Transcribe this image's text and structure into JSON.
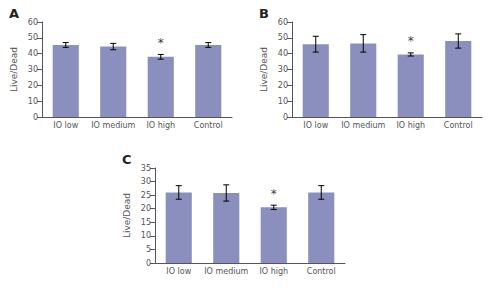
{
  "chart_data": [
    {
      "type": "bar",
      "title": "A",
      "categories": [
        "IO low",
        "IO medium",
        "IO high",
        "Control"
      ],
      "values": [
        45.5,
        44.5,
        38.0,
        45.5
      ],
      "errors": [
        1.5,
        2.0,
        1.5,
        1.5
      ],
      "color": "#8b8fbe",
      "ylim": [
        0,
        60
      ],
      "yticks": [
        0,
        10,
        20,
        30,
        40,
        50,
        60
      ],
      "ylabel": "Live/Dead",
      "grid": false,
      "annotations": [
        {
          "text": "*",
          "x": "IO high",
          "y": 43.0
        }
      ]
    },
    {
      "type": "bar",
      "title": "B",
      "categories": [
        "IO low",
        "IO medium",
        "IO high",
        "Control"
      ],
      "values": [
        46.0,
        46.5,
        39.5,
        48.0
      ],
      "errors": [
        5.0,
        5.5,
        1.0,
        4.5
      ],
      "color": "#8b8fbe",
      "ylim": [
        0,
        60
      ],
      "yticks": [
        0,
        10,
        20,
        30,
        40,
        50,
        60
      ],
      "ylabel": "Live/Dead",
      "grid": false,
      "annotations": [
        {
          "text": "*",
          "x": "IO high",
          "y": 44.0
        }
      ]
    },
    {
      "type": "bar",
      "title": "C",
      "categories": [
        "IO low",
        "IO medium",
        "IO high",
        "Control"
      ],
      "values": [
        26.0,
        25.8,
        20.5,
        26.0
      ],
      "errors": [
        2.5,
        3.0,
        0.8,
        2.5
      ],
      "color": "#8b8fbe",
      "ylim": [
        0,
        35
      ],
      "yticks": [
        0,
        5,
        10,
        15,
        20,
        25,
        30,
        35
      ],
      "ylabel": "Live/Dead",
      "grid": false,
      "annotations": [
        {
          "text": "*",
          "x": "IO high",
          "y": 23.3
        }
      ]
    }
  ]
}
